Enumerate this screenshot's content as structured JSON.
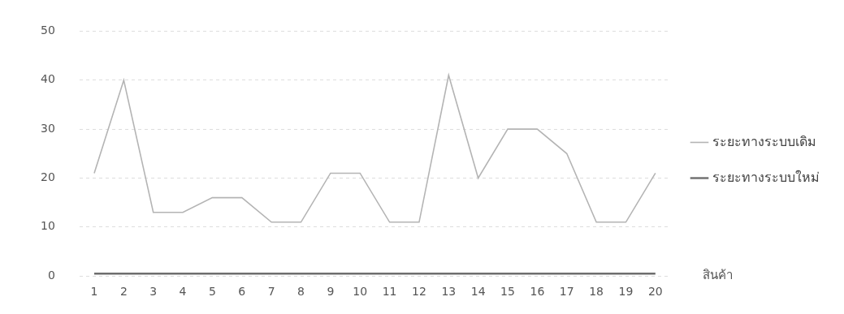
{
  "chart_data": {
    "type": "line",
    "x_label": "สินค้า",
    "categories": [
      "1",
      "2",
      "3",
      "4",
      "5",
      "6",
      "7",
      "8",
      "9",
      "10",
      "11",
      "12",
      "13",
      "14",
      "15",
      "16",
      "17",
      "18",
      "19",
      "20"
    ],
    "series": [
      {
        "name": "ระยะทางระบบเดิม",
        "color": "#b4b4b4",
        "values": [
          21,
          40,
          13,
          13,
          16,
          16,
          11,
          11,
          21,
          21,
          11,
          11,
          41,
          20,
          30,
          30,
          25,
          11,
          11,
          21
        ]
      },
      {
        "name": "ระยะทางระบบใหม่",
        "color": "#6e6e6e",
        "values": [
          0.5,
          0.5,
          0.5,
          0.5,
          0.5,
          0.5,
          0.5,
          0.5,
          0.5,
          0.5,
          0.5,
          0.5,
          0.5,
          0.5,
          0.5,
          0.5,
          0.5,
          0.5,
          0.5,
          0.5
        ]
      }
    ],
    "ylim": [
      0,
      50
    ],
    "yticks": [
      0,
      10,
      20,
      30,
      40,
      50
    ],
    "grid": true,
    "legend": "right"
  }
}
